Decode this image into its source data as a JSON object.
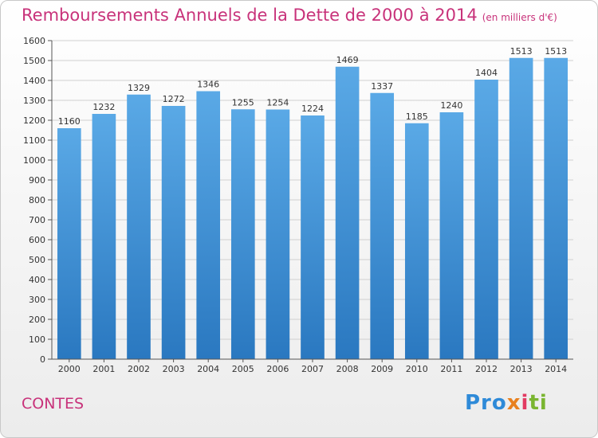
{
  "title": "Remboursements Annuels de la Dette de 2000 à 2014",
  "unit_label": "(en milliers d'€)",
  "commune": "CONTES",
  "logo": {
    "p1": "Pro",
    "p2": "x",
    "p3": "i",
    "p4": "ti"
  },
  "colors": {
    "bar_top": "#5aa9e6",
    "bar_bottom": "#2a78c0",
    "title": "#c8327a",
    "grid": "#d0d0d0"
  },
  "chart_data": {
    "type": "bar",
    "title": "Remboursements Annuels de la Dette de 2000 à 2014",
    "xlabel": "",
    "ylabel": "",
    "ylim": [
      0,
      1600
    ],
    "yticks": [
      0,
      100,
      200,
      300,
      400,
      500,
      600,
      700,
      800,
      900,
      1000,
      1100,
      1200,
      1300,
      1400,
      1500,
      1600
    ],
    "categories": [
      "2000",
      "2001",
      "2002",
      "2003",
      "2004",
      "2005",
      "2006",
      "2007",
      "2008",
      "2009",
      "2010",
      "2011",
      "2012",
      "2013",
      "2014"
    ],
    "values": [
      1160,
      1232,
      1329,
      1272,
      1346,
      1255,
      1254,
      1224,
      1469,
      1337,
      1185,
      1240,
      1404,
      1513,
      1513
    ],
    "grid": true
  }
}
